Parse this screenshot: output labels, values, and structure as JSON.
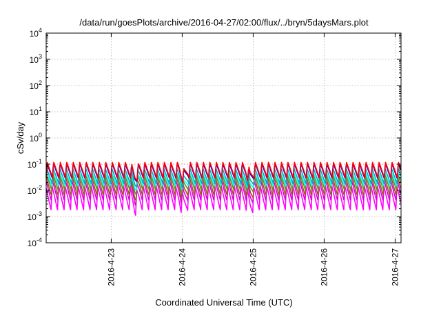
{
  "chart_data": {
    "type": "line",
    "title": "/data/run/goesPlots/archive/2016-04-27/02:00/flux/../bryn/5daysMars.plot",
    "xlabel": "Coordinated Universal Time (UTC)",
    "ylabel": "cSv/day",
    "y_scale": "log",
    "ylim": [
      0.0001,
      10000
    ],
    "xlim": [
      "2016-04-22 02:00",
      "2016-04-27 02:00"
    ],
    "y_ticks": [
      {
        "value": 0.0001,
        "base": "10",
        "exp": "-4"
      },
      {
        "value": 0.001,
        "base": "10",
        "exp": "-3"
      },
      {
        "value": 0.01,
        "base": "10",
        "exp": "-2"
      },
      {
        "value": 0.1,
        "base": "10",
        "exp": "-1"
      },
      {
        "value": 1,
        "base": "10",
        "exp": "0"
      },
      {
        "value": 10,
        "base": "10",
        "exp": "1"
      },
      {
        "value": 100,
        "base": "10",
        "exp": "2"
      },
      {
        "value": 1000,
        "base": "10",
        "exp": "3"
      },
      {
        "value": 10000,
        "base": "10",
        "exp": "4"
      }
    ],
    "x_ticks": [
      {
        "value": "2016-04-23 00:00",
        "label": "2016-4-23"
      },
      {
        "value": "2016-04-24 00:00",
        "label": "2016-4-24"
      },
      {
        "value": "2016-04-25 00:00",
        "label": "2016-4-25"
      },
      {
        "value": "2016-04-26 00:00",
        "label": "2016-4-26"
      },
      {
        "value": "2016-04-27 00:00",
        "label": "2016-4-27"
      }
    ],
    "grid": true,
    "reference_line": {
      "y": 0.1,
      "color": "#ff6a6a"
    },
    "oscillation": {
      "period_hours": 2.2,
      "dips_at": [
        "2016-04-23 08:00",
        "2016-04-24 00:30",
        "2016-04-24 23:00"
      ]
    },
    "series": [
      {
        "color": "#ff0000",
        "peak": 0.12,
        "trough": 0.03
      },
      {
        "color": "#0000ff",
        "peak": 0.11,
        "trough": 0.028
      },
      {
        "color": "#00b0b0",
        "peak": 0.07,
        "trough": 0.018
      },
      {
        "color": "#00ffff",
        "peak": 0.05,
        "trough": 0.014
      },
      {
        "color": "#6b8e23",
        "peak": 0.045,
        "trough": 0.01
      },
      {
        "color": "#a0522d",
        "peak": 0.035,
        "trough": 0.006
      },
      {
        "color": "#dd00dd",
        "peak": 0.025,
        "trough": 0.004
      },
      {
        "color": "#ff00ff",
        "peak": 0.015,
        "trough": 0.0018
      }
    ]
  }
}
